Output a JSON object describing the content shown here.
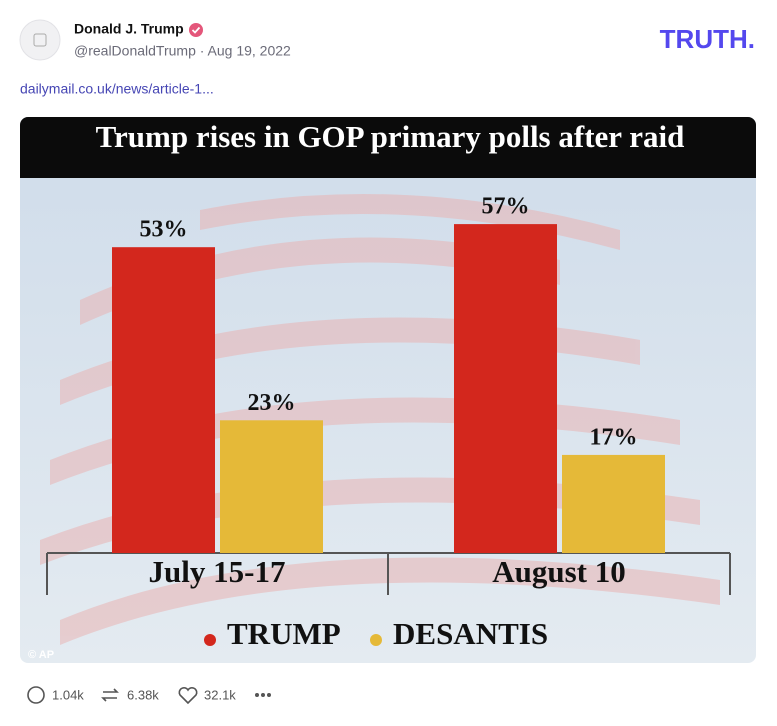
{
  "post": {
    "author": "Donald J. Trump",
    "handle_date": "@realDonaldTrump · Aug 19, 2022",
    "logo": "TRUTH.",
    "link": "dailymail.co.uk/news/article-1...",
    "image_credit": "© AP",
    "stats": {
      "replies": "1.04k",
      "reposts": "6.38k",
      "likes": "32.1k"
    }
  },
  "chart_data": {
    "type": "bar",
    "title": "Trump rises in GOP primary polls after raid",
    "categories": [
      "July 15-17",
      "August 10"
    ],
    "series": [
      {
        "name": "TRUMP",
        "color": "#d3271d",
        "values": [
          53,
          57
        ],
        "value_labels": [
          "53%",
          "57%"
        ]
      },
      {
        "name": "DESANTIS",
        "color": "#e5b938",
        "values": [
          23,
          17
        ],
        "value_labels": [
          "23%",
          "17%"
        ]
      }
    ]
  }
}
